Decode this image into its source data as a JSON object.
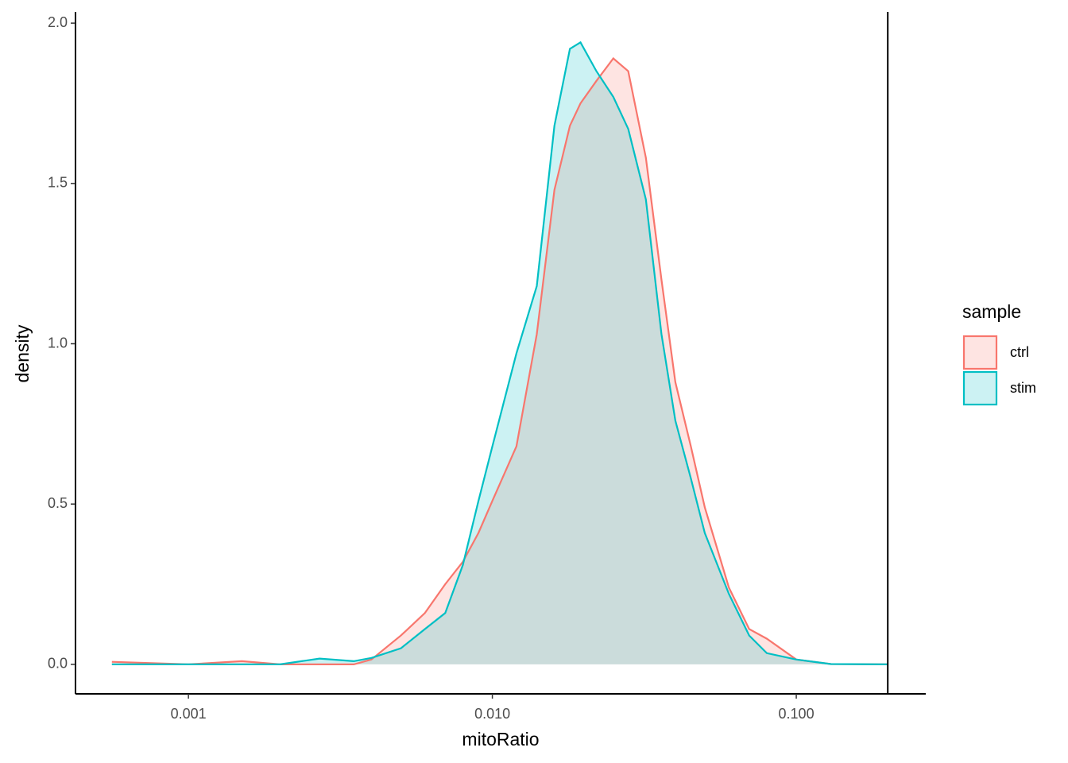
{
  "chart_data": {
    "type": "density",
    "x_label": "mitoRatio",
    "y_label": "density",
    "x_scale": "log",
    "xlim": [
      0.000425,
      0.2667
    ],
    "ylim": [
      -0.092,
      2.035
    ],
    "xticks": [
      {
        "value": 0.001,
        "label": "0.001"
      },
      {
        "value": 0.01,
        "label": "0.010"
      },
      {
        "value": 0.1,
        "label": "0.100"
      }
    ],
    "yticks": [
      {
        "value": 0,
        "label": "0.0"
      },
      {
        "value": 0.5,
        "label": "0.5"
      },
      {
        "value": 1,
        "label": "1.0"
      },
      {
        "value": 1.5,
        "label": "1.5"
      },
      {
        "value": 2,
        "label": "2.0"
      }
    ],
    "vline": 0.2,
    "legend_title": "sample",
    "legend_position": "right",
    "x": [
      0.00056,
      0.001,
      0.0015,
      0.002,
      0.0027,
      0.0035,
      0.004,
      0.005,
      0.006,
      0.007,
      0.008,
      0.009,
      0.01,
      0.012,
      0.014,
      0.016,
      0.018,
      0.0195,
      0.022,
      0.025,
      0.028,
      0.032,
      0.036,
      0.04,
      0.045,
      0.05,
      0.06,
      0.07,
      0.08,
      0.1,
      0.13,
      0.2
    ],
    "series": [
      {
        "name": "ctrl",
        "color": "#F8766D",
        "values": [
          0.008,
          0,
          0.01,
          0,
          0,
          0,
          0.015,
          0.09,
          0.16,
          0.25,
          0.32,
          0.41,
          0.51,
          0.68,
          1.03,
          1.48,
          1.68,
          1.75,
          1.82,
          1.89,
          1.85,
          1.58,
          1.2,
          0.88,
          0.68,
          0.49,
          0.24,
          0.11,
          0.08,
          0.015,
          0.001,
          0
        ]
      },
      {
        "name": "stim",
        "color": "#00BFC4",
        "values": [
          0,
          0,
          0,
          0,
          0.018,
          0.01,
          0.02,
          0.05,
          0.11,
          0.16,
          0.31,
          0.51,
          0.68,
          0.97,
          1.18,
          1.68,
          1.92,
          1.94,
          1.85,
          1.77,
          1.67,
          1.45,
          1.03,
          0.76,
          0.58,
          0.41,
          0.22,
          0.09,
          0.035,
          0.015,
          0.001,
          0
        ]
      }
    ]
  }
}
